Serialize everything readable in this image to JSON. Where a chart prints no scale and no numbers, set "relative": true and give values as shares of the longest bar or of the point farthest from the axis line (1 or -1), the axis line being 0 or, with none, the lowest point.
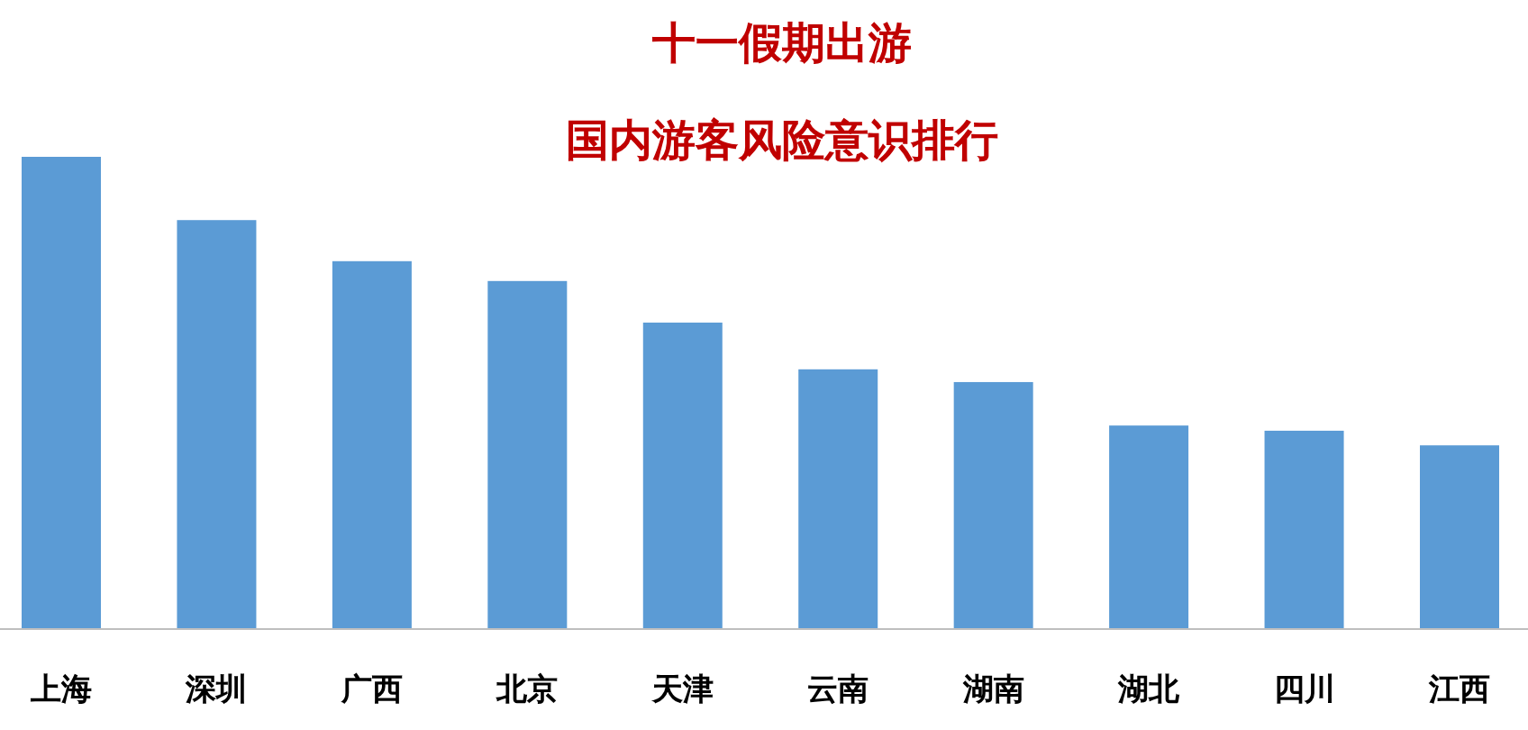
{
  "chart_data": {
    "type": "bar",
    "title": "十一假期出游",
    "subtitle": "国内游客风险意识排行",
    "relative": true,
    "categories": [
      "上海",
      "深圳",
      "广西",
      "北京",
      "天津",
      "云南",
      "湖南",
      "湖北",
      "四川",
      "江西"
    ],
    "values": [
      1,
      0.866,
      0.779,
      0.737,
      0.649,
      0.55,
      0.523,
      0.431,
      0.42,
      0.389
    ],
    "color": "#5b9bd5"
  }
}
